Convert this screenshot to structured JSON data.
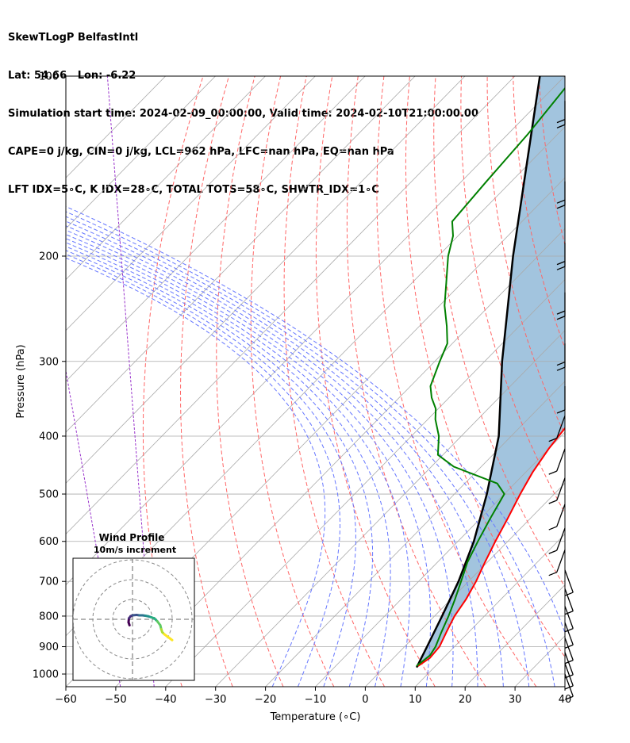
{
  "header": {
    "line1": "SkewTLogP BelfastIntl",
    "line2": "Lat: 54.66   Lon: -6.22",
    "line3": "Simulation start time: 2024-02-09_00:00:00, Valid time: 2024-02-10T21:00:00.00",
    "line4": "CAPE=0 j/kg, CIN=0 j/kg, LCL=962 hPa, LFC=nan hPa, EQ=nan hPa",
    "line5": "LFT IDX=5∘C, K IDX=28∘C, TOTAL TOTS=58∘C, SHWTR_IDX=1∘C"
  },
  "inset": {
    "title": "Wind Profile",
    "subtitle": "10m/s increment"
  },
  "colors": {
    "temperature": "#ff0000",
    "dewpoint": "#008000",
    "parcel": "#000000",
    "cape_fill": "#a2c4de",
    "dry_adiabats": "#ff6666",
    "moist_adiabats": "#6677ff",
    "mixing_ratio": "#9933cc",
    "isotherms": "#aaaaaa"
  },
  "chart_data": {
    "type": "line",
    "title": "SkewTLogP BelfastIntl",
    "xlabel": "Temperature (∘C)",
    "ylabel": "Pressure (hPa)",
    "xlim": [
      -60,
      40
    ],
    "ylim": [
      1050,
      100
    ],
    "xticks": [
      "−60",
      "−50",
      "−40",
      "−30",
      "−20",
      "−10",
      "0",
      "10",
      "20",
      "30",
      "40"
    ],
    "yticks": [
      "100",
      "200",
      "300",
      "400",
      "500",
      "600",
      "700",
      "800",
      "900",
      "1000"
    ],
    "series": [
      {
        "name": "Temperature",
        "points": [
          [
            6.5,
            970
          ],
          [
            7.3,
            940
          ],
          [
            7.0,
            900
          ],
          [
            5.5,
            850
          ],
          [
            4.0,
            800
          ],
          [
            3.0,
            750
          ],
          [
            1.5,
            700
          ],
          [
            -0.5,
            650
          ],
          [
            -2.5,
            600
          ],
          [
            -4.5,
            550
          ],
          [
            -6.8,
            500
          ],
          [
            -8.6,
            460
          ],
          [
            -10.0,
            420
          ],
          [
            -11.0,
            380
          ],
          [
            -12.2,
            340
          ],
          [
            -13.5,
            300
          ],
          [
            -13.9,
            270
          ],
          [
            -13.8,
            250
          ],
          [
            -12.9,
            235
          ],
          [
            -13.3,
            220
          ],
          [
            -13.8,
            200
          ],
          [
            -14.3,
            180
          ],
          [
            -17.0,
            160
          ],
          [
            -19.5,
            140
          ],
          [
            -23.0,
            120
          ],
          [
            -28.0,
            100
          ]
        ]
      },
      {
        "name": "Dewpoint",
        "points": [
          [
            6.2,
            970
          ],
          [
            6.8,
            930
          ],
          [
            6.2,
            900
          ],
          [
            4.5,
            850
          ],
          [
            2.8,
            800
          ],
          [
            0.8,
            750
          ],
          [
            -1.5,
            700
          ],
          [
            -4.0,
            650
          ],
          [
            -6.0,
            600
          ],
          [
            -8.0,
            550
          ],
          [
            -10.0,
            500
          ],
          [
            -13.5,
            480
          ],
          [
            -25.5,
            450
          ],
          [
            -31.0,
            430
          ],
          [
            -34.5,
            400
          ],
          [
            -38.5,
            375
          ],
          [
            -40.5,
            360
          ],
          [
            -43.5,
            345
          ],
          [
            -46.0,
            330
          ],
          [
            -49.0,
            300
          ],
          [
            -51.0,
            280
          ],
          [
            -54.5,
            262
          ],
          [
            -59.0,
            242
          ],
          [
            -63.5,
            220
          ],
          [
            -68.0,
            200
          ],
          [
            -71.0,
            185
          ],
          [
            -74.0,
            175
          ],
          [
            -75.0,
            150
          ],
          [
            -76.0,
            125
          ],
          [
            -78.0,
            100
          ]
        ]
      },
      {
        "name": "Parcel",
        "points": [
          [
            6.5,
            975
          ],
          [
            4.5,
            900
          ],
          [
            1.5,
            800
          ],
          [
            -2.0,
            700
          ],
          [
            -6.8,
            600
          ],
          [
            -13.5,
            500
          ],
          [
            -22.5,
            400
          ],
          [
            -36.5,
            300
          ],
          [
            -55.0,
            200
          ],
          [
            -85.0,
            100
          ]
        ]
      }
    ],
    "wind_barbs_pressure": [
      110,
      150,
      190,
      230,
      280,
      330,
      370,
      420,
      470,
      520,
      570,
      620,
      670,
      720,
      770,
      820,
      870,
      920,
      960,
      1000
    ],
    "hodograph": {
      "rings_ms": [
        10,
        20,
        30
      ],
      "u_ms": [
        -1.5,
        -2.0,
        -1.8,
        -1.0,
        0.0,
        2.0,
        3.5,
        5.0,
        6.5,
        8.0,
        9.5,
        11.0,
        12.5,
        14.0,
        14.5,
        15.0,
        16.0,
        18.0,
        20.0
      ],
      "v_ms": [
        -3.0,
        -1.5,
        0.5,
        1.5,
        2.0,
        2.2,
        2.0,
        2.0,
        1.8,
        1.5,
        1.0,
        0.5,
        -1.0,
        -3.0,
        -5.0,
        -6.5,
        -7.5,
        -9.0,
        -10.5
      ]
    }
  }
}
